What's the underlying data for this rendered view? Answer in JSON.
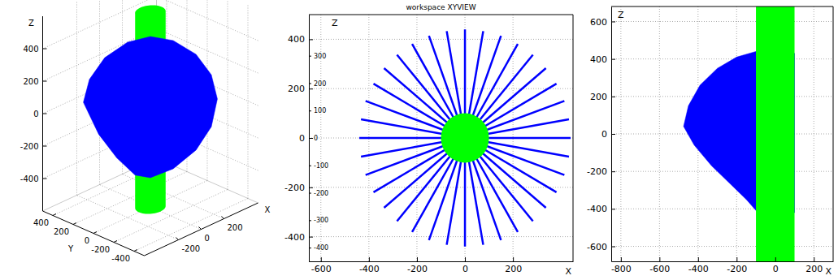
{
  "chart_data": [
    {
      "type": "3d",
      "xlabel": "X",
      "ylabel": "Y",
      "zlabel": "Z",
      "xlim": [
        -500,
        500
      ],
      "ylim": [
        -500,
        500
      ],
      "zlim": [
        -600,
        600
      ],
      "xticks": [
        -200,
        0,
        200
      ],
      "yticks": [
        -400,
        -200,
        0,
        200,
        400
      ],
      "zticks": [
        -400,
        -200,
        0,
        200,
        400
      ],
      "grid": true,
      "series": [
        {
          "type": "cylinder",
          "color": "#00ff00",
          "radius": 100,
          "z": [
            -600,
            600
          ]
        },
        {
          "type": "area",
          "color": "#0000ff",
          "x": [
            -311,
            -283,
            -212,
            -106,
            0,
            106,
            212,
            283,
            311,
            283,
            212,
            106,
            0,
            -71,
            -156,
            -240
          ],
          "y": [
            311,
            283,
            212,
            106,
            0,
            -106,
            -212,
            -283,
            -311,
            -283,
            -212,
            -106,
            0,
            71,
            156,
            240
          ],
          "z": [
            60,
            200,
            330,
            420,
            450,
            420,
            330,
            200,
            50,
            -120,
            -260,
            -370,
            -420,
            -400,
            -290,
            -140
          ]
        }
      ]
    },
    {
      "type": "line",
      "title": "workspace XYVIEW",
      "xlabel": "X",
      "ylabel": "Z",
      "xlim": [
        -650,
        450
      ],
      "ylim": [
        -500,
        500
      ],
      "xticks": [
        -600,
        -400,
        -200,
        0,
        200
      ],
      "yticks": [
        -400,
        -200,
        0,
        200,
        400
      ],
      "y2lim": [
        -450,
        450
      ],
      "y2ticks": [
        -400,
        -300,
        -200,
        -100,
        0,
        100,
        200,
        300
      ],
      "grid": true,
      "series": [
        {
          "type": "rays",
          "color": "#0000ff",
          "x": [
            440,
            433,
            414,
            381,
            337,
            283,
            220,
            150,
            76,
            0,
            -76,
            -150,
            -220,
            -283,
            -337,
            -381,
            -414,
            -433,
            -440,
            -433,
            -414,
            -381,
            -337,
            -283,
            -220,
            -150,
            -76,
            0,
            76,
            150,
            220,
            283,
            337,
            381,
            414,
            433
          ],
          "y": [
            0,
            76,
            150,
            220,
            283,
            337,
            381,
            414,
            433,
            440,
            433,
            414,
            381,
            337,
            283,
            220,
            150,
            76,
            0,
            -76,
            -150,
            -220,
            -283,
            -337,
            -381,
            -414,
            -433,
            -440,
            -433,
            -414,
            -381,
            -337,
            -283,
            -220,
            -150,
            -76
          ]
        },
        {
          "type": "circle",
          "color": "#00ff00",
          "radius": 100
        }
      ]
    },
    {
      "type": "area",
      "xlabel": "X",
      "ylabel": "Z",
      "xlim": [
        -850,
        300
      ],
      "ylim": [
        -680,
        680
      ],
      "xticks": [
        -800,
        -600,
        -400,
        -200,
        0,
        200
      ],
      "yticks": [
        -600,
        -400,
        -200,
        0,
        200,
        400,
        600
      ],
      "grid": true,
      "series": [
        {
          "type": "area",
          "color": "#0000ff",
          "x": [
            -475,
            -450,
            -390,
            -300,
            -200,
            -100,
            100,
            100,
            -90,
            -150,
            -230,
            -330,
            -420
          ],
          "y": [
            40,
            150,
            260,
            350,
            410,
            440,
            430,
            -420,
            -420,
            -350,
            -270,
            -170,
            -60
          ]
        },
        {
          "type": "cylinder",
          "color": "#00ff00",
          "radius": 100,
          "z": [
            -700,
            700
          ]
        }
      ]
    }
  ]
}
